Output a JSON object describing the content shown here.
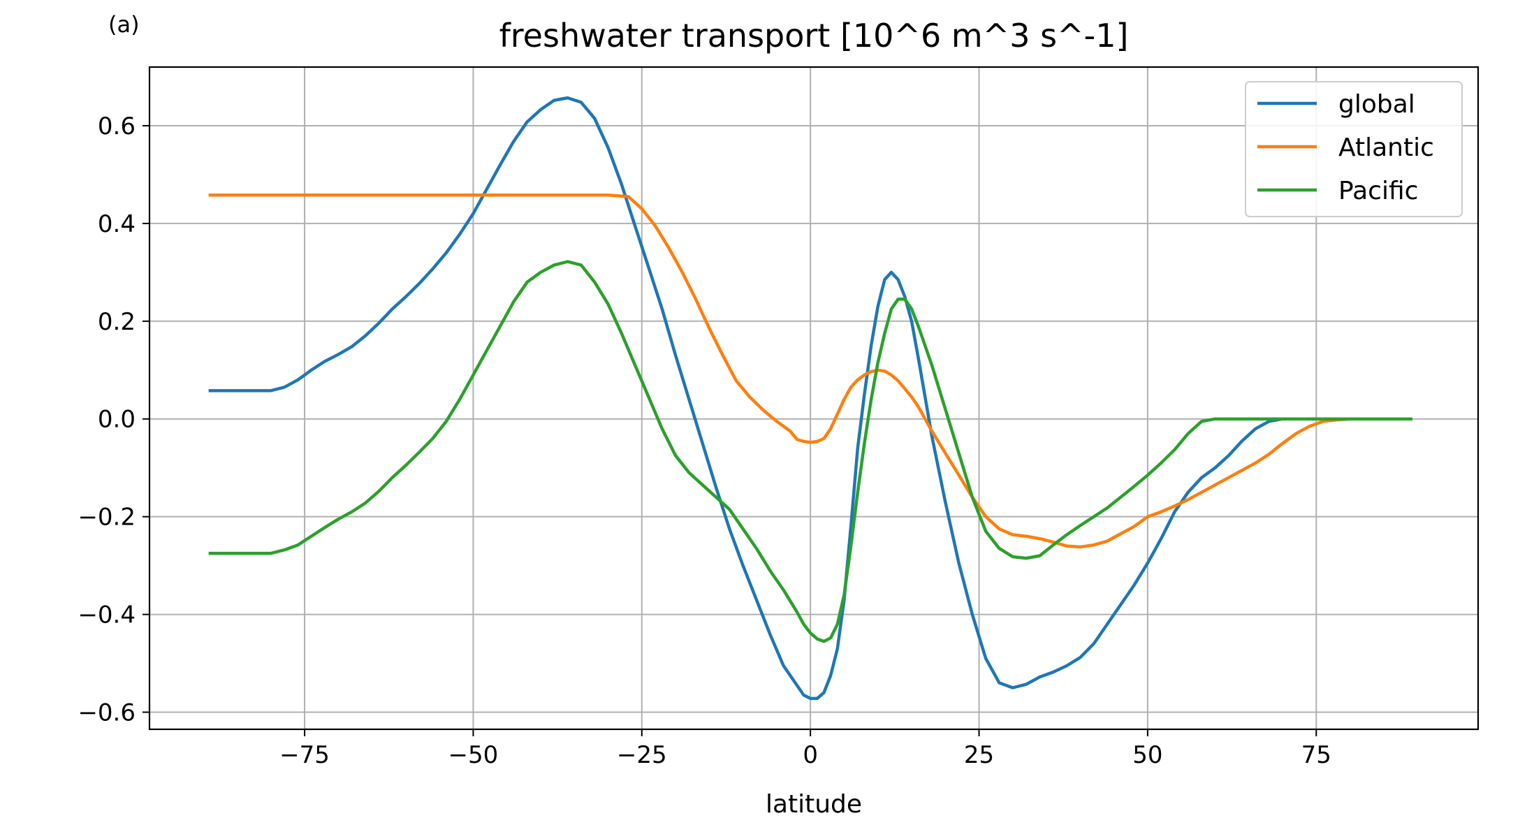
{
  "panel_label": "(a)",
  "chart_data": {
    "type": "line",
    "title": "freshwater transport [10^6 m^3 s^-1]",
    "xlabel": "latitude",
    "ylabel": "",
    "xlim": [
      -98,
      99
    ],
    "ylim": [
      -0.635,
      0.72
    ],
    "xticks": [
      -75,
      -50,
      -25,
      0,
      25,
      50,
      75
    ],
    "xtick_labels": [
      "−75",
      "−50",
      "−25",
      "0",
      "25",
      "50",
      "75"
    ],
    "yticks": [
      -0.6,
      -0.4,
      -0.2,
      0.0,
      0.2,
      0.4,
      0.6
    ],
    "ytick_labels": [
      "−0.6",
      "−0.4",
      "−0.2",
      "0.0",
      "0.2",
      "0.4",
      "0.6"
    ],
    "grid": true,
    "legend_position": "top-right",
    "series": [
      {
        "name": "global",
        "color": "#1f77b4",
        "x": [
          -89,
          -85,
          -80,
          -78,
          -76,
          -74,
          -72,
          -70,
          -68,
          -66,
          -64,
          -62,
          -60,
          -58,
          -56,
          -54,
          -52,
          -50,
          -48,
          -46,
          -44,
          -42,
          -40,
          -38,
          -36,
          -34,
          -32,
          -30,
          -28,
          -26,
          -24,
          -22,
          -20,
          -18,
          -16,
          -14,
          -12,
          -10,
          -8,
          -6,
          -4,
          -2,
          -1,
          0,
          1,
          2,
          3,
          4,
          5,
          6,
          7,
          8,
          9,
          10,
          11,
          12,
          13,
          14,
          15,
          16,
          17,
          18,
          20,
          22,
          24,
          26,
          28,
          30,
          32,
          34,
          36,
          38,
          40,
          42,
          44,
          46,
          48,
          50,
          52,
          54,
          56,
          58,
          60,
          62,
          64,
          66,
          68,
          70,
          72,
          74,
          76,
          78,
          80,
          82,
          84,
          86,
          88,
          89
        ],
        "y": [
          0.058,
          0.058,
          0.058,
          0.065,
          0.08,
          0.1,
          0.118,
          0.132,
          0.148,
          0.17,
          0.196,
          0.225,
          0.25,
          0.277,
          0.307,
          0.34,
          0.378,
          0.42,
          0.47,
          0.52,
          0.568,
          0.608,
          0.633,
          0.652,
          0.657,
          0.648,
          0.615,
          0.555,
          0.48,
          0.395,
          0.31,
          0.225,
          0.13,
          0.04,
          -0.05,
          -0.14,
          -0.225,
          -0.3,
          -0.37,
          -0.44,
          -0.505,
          -0.545,
          -0.565,
          -0.572,
          -0.572,
          -0.56,
          -0.525,
          -0.47,
          -0.37,
          -0.22,
          -0.06,
          0.05,
          0.15,
          0.23,
          0.285,
          0.3,
          0.285,
          0.25,
          0.2,
          0.125,
          0.045,
          -0.035,
          -0.17,
          -0.295,
          -0.4,
          -0.49,
          -0.54,
          -0.55,
          -0.543,
          -0.528,
          -0.518,
          -0.505,
          -0.488,
          -0.46,
          -0.42,
          -0.38,
          -0.34,
          -0.295,
          -0.245,
          -0.19,
          -0.15,
          -0.12,
          -0.1,
          -0.075,
          -0.045,
          -0.02,
          -0.005,
          0,
          0,
          0,
          0,
          0,
          0,
          0,
          0,
          0,
          0,
          0
        ]
      },
      {
        "name": "Atlantic",
        "color": "#ff7f0e",
        "x": [
          -89,
          -80,
          -70,
          -60,
          -50,
          -40,
          -30,
          -27,
          -25,
          -23,
          -21,
          -19,
          -17,
          -15,
          -13,
          -11,
          -9,
          -7,
          -5,
          -3,
          -2,
          -1,
          0,
          1,
          2,
          3,
          4,
          5,
          6,
          7,
          8,
          9,
          10,
          11,
          12,
          13,
          14,
          15,
          16,
          17,
          18,
          20,
          22,
          24,
          26,
          28,
          30,
          32,
          34,
          36,
          38,
          40,
          42,
          44,
          46,
          48,
          50,
          52,
          54,
          56,
          58,
          60,
          62,
          64,
          66,
          68,
          70,
          72,
          74,
          76,
          78,
          80,
          82,
          84,
          86,
          88,
          89
        ],
        "y": [
          0.458,
          0.458,
          0.458,
          0.458,
          0.458,
          0.458,
          0.458,
          0.455,
          0.43,
          0.395,
          0.35,
          0.3,
          0.245,
          0.185,
          0.13,
          0.078,
          0.045,
          0.018,
          -0.005,
          -0.025,
          -0.042,
          -0.046,
          -0.048,
          -0.046,
          -0.04,
          -0.02,
          0.01,
          0.04,
          0.065,
          0.08,
          0.09,
          0.097,
          0.1,
          0.098,
          0.09,
          0.078,
          0.062,
          0.045,
          0.025,
          0.0,
          -0.025,
          -0.07,
          -0.115,
          -0.16,
          -0.2,
          -0.225,
          -0.237,
          -0.24,
          -0.245,
          -0.252,
          -0.26,
          -0.262,
          -0.258,
          -0.25,
          -0.235,
          -0.22,
          -0.2,
          -0.19,
          -0.178,
          -0.165,
          -0.15,
          -0.135,
          -0.12,
          -0.105,
          -0.09,
          -0.072,
          -0.05,
          -0.03,
          -0.015,
          -0.005,
          -0.002,
          0,
          0,
          0,
          0,
          0,
          0
        ]
      },
      {
        "name": "Pacific",
        "color": "#2ca02c",
        "x": [
          -89,
          -85,
          -80,
          -78,
          -76,
          -74,
          -72,
          -70,
          -68,
          -66,
          -64,
          -62,
          -60,
          -58,
          -56,
          -54,
          -52,
          -50,
          -48,
          -46,
          -44,
          -42,
          -40,
          -38,
          -36,
          -34,
          -32,
          -30,
          -28,
          -26,
          -24,
          -22,
          -20,
          -18,
          -16,
          -14,
          -12,
          -10,
          -8,
          -6,
          -4,
          -2,
          -1,
          0,
          1,
          2,
          3,
          4,
          5,
          6,
          7,
          8,
          9,
          10,
          11,
          12,
          13,
          14,
          15,
          16,
          17,
          18,
          20,
          22,
          24,
          26,
          28,
          30,
          32,
          34,
          36,
          38,
          40,
          42,
          44,
          46,
          48,
          50,
          52,
          54,
          56,
          58,
          60,
          62,
          64,
          66,
          68,
          70,
          72,
          74,
          76,
          78,
          80,
          82,
          84,
          86,
          88,
          89
        ],
        "y": [
          -0.275,
          -0.275,
          -0.275,
          -0.268,
          -0.258,
          -0.24,
          -0.222,
          -0.205,
          -0.19,
          -0.172,
          -0.148,
          -0.12,
          -0.095,
          -0.068,
          -0.04,
          -0.005,
          0.04,
          0.09,
          0.14,
          0.19,
          0.24,
          0.28,
          0.3,
          0.315,
          0.322,
          0.315,
          0.28,
          0.235,
          0.175,
          0.11,
          0.045,
          -0.02,
          -0.075,
          -0.11,
          -0.135,
          -0.16,
          -0.185,
          -0.225,
          -0.265,
          -0.31,
          -0.35,
          -0.395,
          -0.42,
          -0.438,
          -0.45,
          -0.455,
          -0.448,
          -0.42,
          -0.36,
          -0.26,
          -0.15,
          -0.05,
          0.04,
          0.115,
          0.175,
          0.225,
          0.245,
          0.245,
          0.225,
          0.19,
          0.15,
          0.11,
          0.02,
          -0.07,
          -0.16,
          -0.23,
          -0.265,
          -0.282,
          -0.285,
          -0.28,
          -0.258,
          -0.237,
          -0.218,
          -0.2,
          -0.182,
          -0.16,
          -0.138,
          -0.115,
          -0.09,
          -0.063,
          -0.03,
          -0.005,
          0,
          0,
          0,
          0,
          0,
          0,
          0,
          0,
          0,
          0,
          0,
          0,
          0,
          0,
          0,
          0
        ]
      }
    ]
  }
}
